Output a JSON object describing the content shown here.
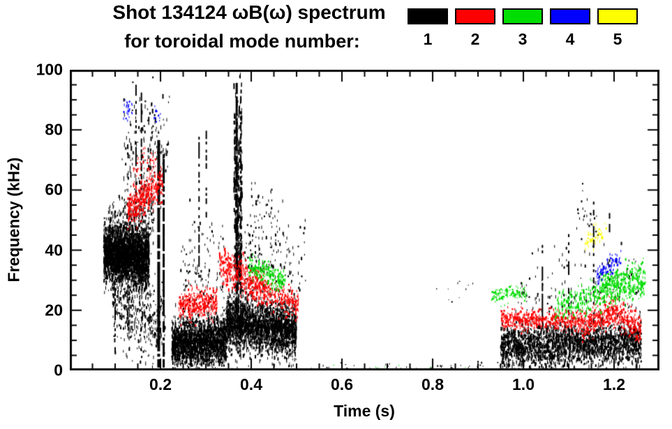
{
  "chart_data": {
    "type": "scatter",
    "title": "Shot 134124 ωB(ω) spectrum",
    "subtitle": "for toroidal mode number:",
    "xlabel": "Time (s)",
    "ylabel": "Frequency (kHz)",
    "xlim": [
      0.0,
      1.3
    ],
    "ylim": [
      0,
      100
    ],
    "xticks": [
      {
        "v": 0.2,
        "label": "0.2"
      },
      {
        "v": 0.4,
        "label": "0.4"
      },
      {
        "v": 0.6,
        "label": "0.6"
      },
      {
        "v": 0.8,
        "label": "0.8"
      },
      {
        "v": 1.0,
        "label": "1.0"
      },
      {
        "v": 1.2,
        "label": "1.2"
      }
    ],
    "yticks": [
      {
        "v": 0,
        "label": "0"
      },
      {
        "v": 20,
        "label": "20"
      },
      {
        "v": 40,
        "label": "40"
      },
      {
        "v": 60,
        "label": "60"
      },
      {
        "v": 80,
        "label": "80"
      },
      {
        "v": 100,
        "label": "100"
      }
    ],
    "x_minor_step": 0.05,
    "y_minor_step": 5,
    "legend": [
      {
        "label": "1",
        "color": "#000000"
      },
      {
        "label": "2",
        "color": "#ff0000"
      },
      {
        "label": "3",
        "color": "#00dd00"
      },
      {
        "label": "4",
        "color": "#0000ff"
      },
      {
        "label": "5",
        "color": "#ffff00"
      }
    ],
    "clusters": [
      {
        "m": 1,
        "t": [
          0.075,
          0.175
        ],
        "fc": [
          39,
          37
        ],
        "s": 4.5,
        "n": 2600,
        "len": [
          2,
          7
        ]
      },
      {
        "m": 1,
        "t": [
          0.085,
          0.185
        ],
        "fc": [
          47,
          52
        ],
        "s": 5,
        "n": 350,
        "len": [
          2,
          5
        ]
      },
      {
        "m": 1,
        "t": [
          0.095,
          0.21
        ],
        "fc": [
          24,
          14
        ],
        "s": 7,
        "n": 450,
        "len": [
          2,
          6
        ]
      },
      {
        "m": 1,
        "t": [
          0.115,
          0.22
        ],
        "fc": [
          72,
          78
        ],
        "s": 11,
        "n": 170,
        "len": [
          2,
          7
        ]
      },
      {
        "m": 1,
        "t": [
          0.225,
          0.345
        ],
        "fc": [
          9,
          9.5
        ],
        "s": 3.8,
        "n": 2000,
        "len": [
          2,
          6
        ]
      },
      {
        "m": 1,
        "t": [
          0.245,
          0.34
        ],
        "fc": [
          33,
          29
        ],
        "s": 9,
        "n": 130,
        "len": [
          2,
          5
        ]
      },
      {
        "m": 1,
        "t": [
          0.362,
          0.38
        ],
        "fc": [
          55,
          55
        ],
        "s": 21,
        "n": 420,
        "len": [
          3,
          9
        ]
      },
      {
        "m": 1,
        "t": [
          0.345,
          0.5
        ],
        "fc": [
          16,
          13
        ],
        "s": 4.2,
        "n": 2400,
        "len": [
          2,
          6
        ]
      },
      {
        "m": 1,
        "t": [
          0.385,
          0.52
        ],
        "fc": [
          38,
          34
        ],
        "s": 8,
        "n": 160,
        "len": [
          2,
          5
        ]
      },
      {
        "m": 1,
        "t": [
          0.4,
          0.46
        ],
        "fc": [
          54,
          50
        ],
        "s": 5,
        "n": 45,
        "len": [
          2,
          4
        ]
      },
      {
        "m": 1,
        "t": [
          0.5,
          0.95
        ],
        "fc": [
          1,
          1
        ],
        "s": 0.9,
        "n": 55,
        "len": [
          1,
          3
        ]
      },
      {
        "m": 1,
        "t": [
          0.8,
          0.9
        ],
        "fc": [
          28,
          27
        ],
        "s": 3,
        "n": 10,
        "len": [
          1,
          3
        ]
      },
      {
        "m": 1,
        "t": [
          0.95,
          1.26
        ],
        "fc": [
          8,
          9
        ],
        "s": 3.4,
        "n": 2300,
        "len": [
          2,
          6
        ]
      },
      {
        "m": 1,
        "t": [
          0.98,
          1.26
        ],
        "fc": [
          24,
          27
        ],
        "s": 7,
        "n": 170,
        "len": [
          2,
          5
        ]
      },
      {
        "m": 1,
        "t": [
          1.12,
          1.17
        ],
        "fc": [
          53,
          50
        ],
        "s": 4,
        "n": 25,
        "len": [
          2,
          4
        ]
      },
      {
        "m": 2,
        "t": [
          0.128,
          0.205
        ],
        "fc": [
          53,
          63
        ],
        "s": 2.8,
        "n": 380,
        "len": [
          2,
          5
        ]
      },
      {
        "m": 2,
        "t": [
          0.14,
          0.19
        ],
        "fc": [
          67,
          70
        ],
        "s": 2.5,
        "n": 35,
        "len": [
          2,
          4
        ]
      },
      {
        "m": 2,
        "t": [
          0.24,
          0.325
        ],
        "fc": [
          21,
          22.5
        ],
        "s": 2.4,
        "n": 380,
        "len": [
          2,
          4
        ]
      },
      {
        "m": 2,
        "t": [
          0.33,
          0.43
        ],
        "fc": [
          36,
          26
        ],
        "s": 2.8,
        "n": 420,
        "len": [
          2,
          5
        ]
      },
      {
        "m": 2,
        "t": [
          0.43,
          0.505
        ],
        "fc": [
          26,
          21.5
        ],
        "s": 2.2,
        "n": 220,
        "len": [
          2,
          4
        ]
      },
      {
        "m": 2,
        "t": [
          0.95,
          1.13
        ],
        "fc": [
          17,
          16.5
        ],
        "s": 1.7,
        "n": 520,
        "len": [
          2,
          4
        ]
      },
      {
        "m": 2,
        "t": [
          1.13,
          1.195
        ],
        "fc": [
          14.5,
          19.5
        ],
        "s": 2.2,
        "n": 260,
        "len": [
          2,
          4
        ]
      },
      {
        "m": 2,
        "t": [
          1.195,
          1.26
        ],
        "fc": [
          19.5,
          13.5
        ],
        "s": 2.4,
        "n": 260,
        "len": [
          2,
          4
        ]
      },
      {
        "m": 3,
        "t": [
          0.395,
          0.475
        ],
        "fc": [
          34.5,
          29.5
        ],
        "s": 1.8,
        "n": 210,
        "len": [
          2,
          4
        ]
      },
      {
        "m": 3,
        "t": [
          0.52,
          0.95
        ],
        "fc": [
          0.8,
          0.8
        ],
        "s": 0.7,
        "n": 22,
        "len": [
          1,
          2
        ]
      },
      {
        "m": 3,
        "t": [
          0.93,
          1.01
        ],
        "fc": [
          25,
          25.5
        ],
        "s": 1.4,
        "n": 130,
        "len": [
          2,
          3
        ]
      },
      {
        "m": 3,
        "t": [
          1.07,
          1.27
        ],
        "fc": [
          21,
          29
        ],
        "s": 2.2,
        "n": 420,
        "len": [
          2,
          5
        ]
      },
      {
        "m": 3,
        "t": [
          1.17,
          1.265
        ],
        "fc": [
          29,
          33.5
        ],
        "s": 1.8,
        "n": 160,
        "len": [
          2,
          4
        ]
      },
      {
        "m": 4,
        "t": [
          0.118,
          0.138
        ],
        "fc": [
          86,
          87
        ],
        "s": 1.8,
        "n": 28,
        "len": [
          2,
          4
        ]
      },
      {
        "m": 4,
        "t": [
          0.185,
          0.2
        ],
        "fc": [
          85,
          86
        ],
        "s": 1.8,
        "n": 14,
        "len": [
          2,
          3
        ]
      },
      {
        "m": 4,
        "t": [
          1.16,
          1.215
        ],
        "fc": [
          31,
          38
        ],
        "s": 1.8,
        "n": 95,
        "len": [
          2,
          4
        ]
      },
      {
        "m": 5,
        "t": [
          1.135,
          1.185
        ],
        "fc": [
          43,
          47
        ],
        "s": 1.8,
        "n": 45,
        "len": [
          2,
          4
        ]
      }
    ],
    "vlines": [
      {
        "m": 1,
        "t": 0.1,
        "f": [
          5,
          30
        ],
        "w": 2,
        "gap": 0.5
      },
      {
        "m": 1,
        "t": 0.146,
        "f": [
          50,
          95
        ],
        "w": 2,
        "gap": 0.35
      },
      {
        "m": 1,
        "t": 0.158,
        "f": [
          60,
          92
        ],
        "w": 2,
        "gap": 0.45
      },
      {
        "m": 1,
        "t": 0.196,
        "f": [
          1,
          76
        ],
        "w": 4,
        "gap": 0.1
      },
      {
        "m": 1,
        "t": 0.207,
        "f": [
          1,
          70
        ],
        "w": 3,
        "gap": 0.16
      },
      {
        "m": 1,
        "t": 0.285,
        "f": [
          30,
          77
        ],
        "w": 2,
        "gap": 0.5
      },
      {
        "m": 1,
        "t": 0.301,
        "f": [
          50,
          80
        ],
        "w": 2,
        "gap": 0.55
      },
      {
        "m": 1,
        "t": 0.368,
        "f": [
          20,
          96
        ],
        "w": 3,
        "gap": 0.22
      },
      {
        "m": 1,
        "t": 0.377,
        "f": [
          25,
          90
        ],
        "w": 2,
        "gap": 0.38
      },
      {
        "m": 1,
        "t": 1.042,
        "f": [
          12,
          42
        ],
        "w": 2,
        "gap": 0.5
      },
      {
        "m": 1,
        "t": 1.1,
        "f": [
          12,
          46
        ],
        "w": 2,
        "gap": 0.5
      },
      {
        "m": 1,
        "t": 1.155,
        "f": [
          12,
          56
        ],
        "w": 2,
        "gap": 0.5
      },
      {
        "m": 1,
        "t": 1.19,
        "f": [
          28,
          52
        ],
        "w": 2,
        "gap": 0.6
      }
    ]
  }
}
